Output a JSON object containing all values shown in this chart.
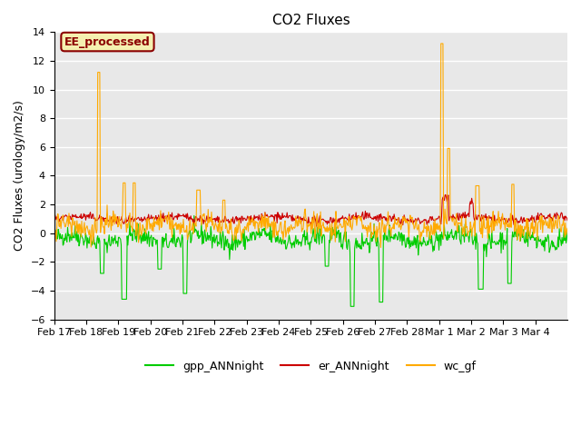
{
  "title": "CO2 Fluxes",
  "ylabel": "CO2 Fluxes (urology/m2/s)",
  "ylim": [
    -6,
    14
  ],
  "yticks": [
    -6,
    -4,
    -2,
    0,
    2,
    4,
    6,
    8,
    10,
    12,
    14
  ],
  "bg_color": "#e8e8e8",
  "annotation_text": "EE_processed",
  "annotation_color": "#8B0000",
  "annotation_bg": "#f5f0b0",
  "colors": {
    "gpp": "#00cc00",
    "er": "#cc0000",
    "wc": "#ffaa00"
  },
  "legend_labels": [
    "gpp_ANNnight",
    "er_ANNnight",
    "wc_gf"
  ],
  "date_labels": [
    "Feb 17",
    "Feb 18",
    "Feb 19",
    "Feb 20",
    "Feb 21",
    "Feb 22",
    "Feb 23",
    "Feb 24",
    "Feb 25",
    "Feb 26",
    "Feb 27",
    "Feb 28",
    "Mar 1",
    "Mar 2",
    "Mar 3",
    "Mar 4"
  ],
  "n_days": 16,
  "n_per_day": 48
}
